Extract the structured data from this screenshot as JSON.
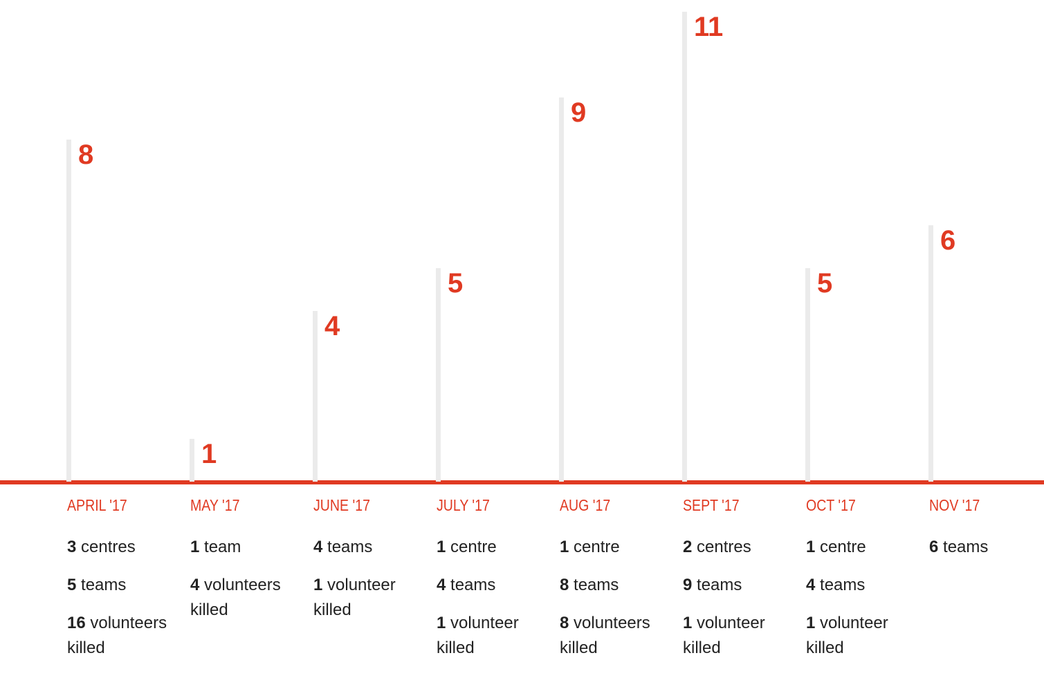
{
  "chart_data": {
    "type": "bar",
    "categories": [
      "APRIL '17",
      "MAY '17",
      "JUNE '17",
      "JULY '17",
      "AUG '17",
      "SEPT '17",
      "OCT '17",
      "NOV '17"
    ],
    "values": [
      8,
      1,
      4,
      5,
      9,
      11,
      5,
      6
    ],
    "ylim": [
      0,
      11
    ],
    "color": "#ebebeb",
    "accent_color": "#e03a22",
    "details": [
      [
        {
          "count": 3,
          "label": "centres"
        },
        {
          "count": 5,
          "label": "teams"
        },
        {
          "count": 16,
          "label": "volunteers killed"
        }
      ],
      [
        {
          "count": 1,
          "label": "team"
        },
        {
          "count": 4,
          "label": "volunteers killed"
        }
      ],
      [
        {
          "count": 4,
          "label": "teams"
        },
        {
          "count": 1,
          "label": "volunteer killed"
        }
      ],
      [
        {
          "count": 1,
          "label": "centre"
        },
        {
          "count": 4,
          "label": "teams"
        },
        {
          "count": 1,
          "label": "volunteer killed"
        }
      ],
      [
        {
          "count": 1,
          "label": "centre"
        },
        {
          "count": 8,
          "label": "teams"
        },
        {
          "count": 8,
          "label": "volunteers killed"
        }
      ],
      [
        {
          "count": 2,
          "label": "centres"
        },
        {
          "count": 9,
          "label": "teams"
        },
        {
          "count": 1,
          "label": "volunteer killed"
        }
      ],
      [
        {
          "count": 1,
          "label": "centre"
        },
        {
          "count": 4,
          "label": "teams"
        },
        {
          "count": 1,
          "label": "volunteer killed"
        }
      ],
      [
        {
          "count": 6,
          "label": "teams"
        }
      ]
    ]
  }
}
